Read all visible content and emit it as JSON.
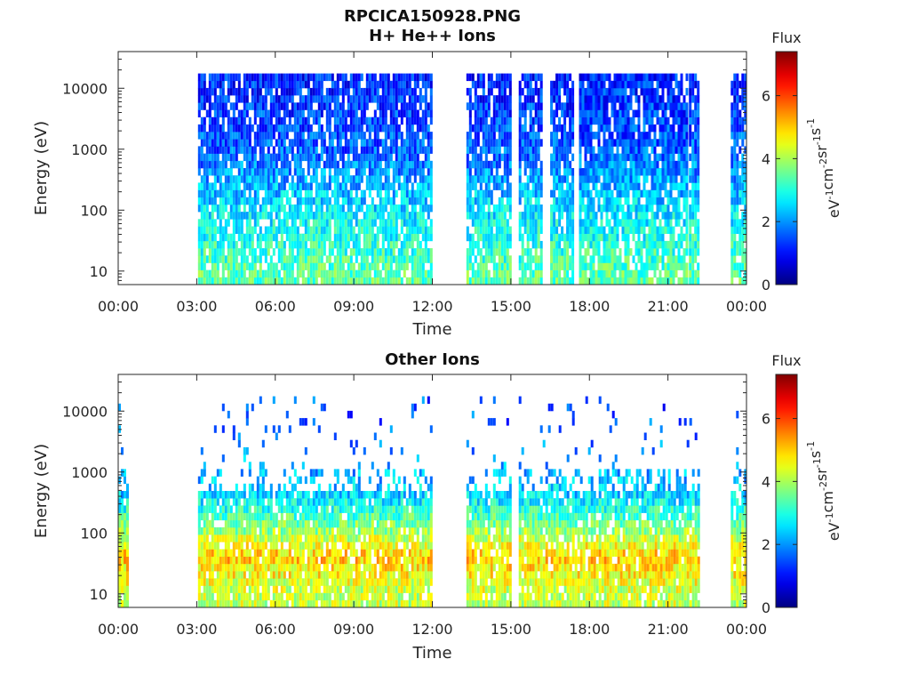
{
  "title": "RPCICA150928.PNG",
  "chart_data": [
    {
      "type": "heatmap",
      "panel": "top",
      "title": "H+ He++ Ions",
      "xlabel": "Time",
      "ylabel": "Energy (eV)",
      "x_ticks": [
        "00:00",
        "03:00",
        "06:00",
        "09:00",
        "12:00",
        "15:00",
        "18:00",
        "21:00",
        "00:00"
      ],
      "y_ticks": [
        "10",
        "100",
        "1000",
        "10000"
      ],
      "ylim": [
        6,
        40000
      ],
      "y_scale": "log",
      "xlim_hours": [
        0,
        24
      ],
      "colorbar": {
        "title": "Flux",
        "label": "eV-1cm-2sr-1s-1",
        "label_parts": [
          {
            "t": "eV",
            "sup": "-1"
          },
          {
            "t": "cm",
            "sup": "-2"
          },
          {
            "t": "sr",
            "sup": "-1"
          },
          {
            "t": "s",
            "sup": "-1"
          }
        ],
        "ticks": [
          "0",
          "2",
          "4",
          "6"
        ],
        "range": [
          0,
          7.4
        ],
        "colormap": "jet"
      },
      "data_intervals_hours": [
        [
          3.05,
          11.95
        ],
        [
          13.3,
          15.0
        ],
        [
          15.3,
          16.2
        ],
        [
          16.5,
          17.4
        ],
        [
          17.6,
          21.7
        ],
        [
          21.8,
          22.15
        ],
        [
          23.4,
          23.95
        ]
      ],
      "intensity_profile": [
        {
          "energy_eV": 10,
          "flux": 3.4
        },
        {
          "energy_eV": 100,
          "flux": 2.6
        },
        {
          "energy_eV": 1000,
          "flux": 1.6
        },
        {
          "energy_eV": 10000,
          "flux": 1.2
        }
      ]
    },
    {
      "type": "heatmap",
      "panel": "bottom",
      "title": "Other Ions",
      "xlabel": "Time",
      "ylabel": "Energy (eV)",
      "x_ticks": [
        "00:00",
        "03:00",
        "06:00",
        "09:00",
        "12:00",
        "15:00",
        "18:00",
        "21:00",
        "00:00"
      ],
      "y_ticks": [
        "10",
        "100",
        "1000",
        "10000"
      ],
      "ylim": [
        6,
        40000
      ],
      "y_scale": "log",
      "xlim_hours": [
        0,
        24
      ],
      "colorbar": {
        "title": "Flux",
        "label": "eV-1cm-2sr-1s-1",
        "label_parts": [
          {
            "t": "eV",
            "sup": "-1"
          },
          {
            "t": "cm",
            "sup": "-2"
          },
          {
            "t": "sr",
            "sup": "-1"
          },
          {
            "t": "s",
            "sup": "-1"
          }
        ],
        "ticks": [
          "0",
          "2",
          "4",
          "6"
        ],
        "range": [
          0,
          7.4
        ],
        "colormap": "jet"
      },
      "data_intervals_hours": [
        [
          0.0,
          0.35
        ],
        [
          3.05,
          11.95
        ],
        [
          13.3,
          15.0
        ],
        [
          15.3,
          22.15
        ],
        [
          23.4,
          23.95
        ]
      ],
      "intensity_profile": [
        {
          "energy_eV": 10,
          "flux": 4.2
        },
        {
          "energy_eV": 40,
          "flux": 5.0
        },
        {
          "energy_eV": 100,
          "flux": 4.0
        },
        {
          "energy_eV": 400,
          "flux": 2.5
        },
        {
          "energy_eV": 10000,
          "flux": 1.5
        }
      ]
    }
  ]
}
